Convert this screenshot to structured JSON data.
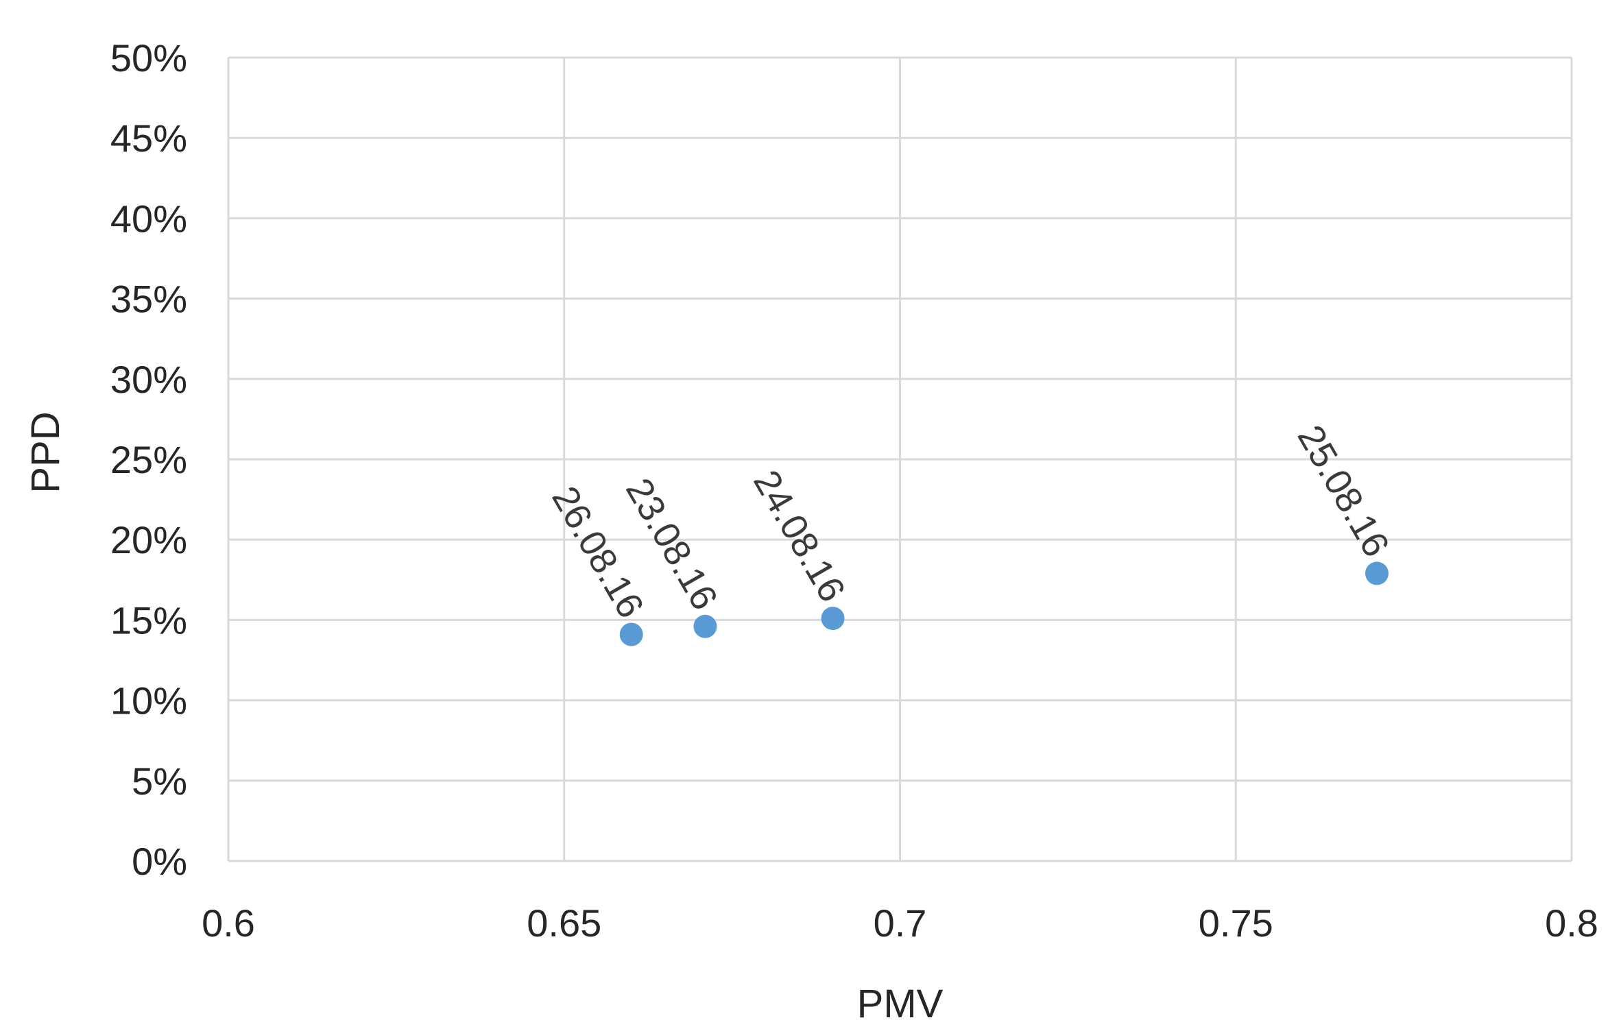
{
  "chart_data": {
    "type": "scatter",
    "title": "",
    "xlabel": "PMV",
    "ylabel": "PPD",
    "xlim": [
      0.6,
      0.8
    ],
    "ylim": [
      0,
      0.5
    ],
    "x_ticks": [
      0.6,
      0.65,
      0.7,
      0.75,
      0.8
    ],
    "x_tick_labels": [
      "0.6",
      "0.65",
      "0.7",
      "0.75",
      "0.8"
    ],
    "y_ticks": [
      0,
      0.05,
      0.1,
      0.15,
      0.2,
      0.25,
      0.3,
      0.35,
      0.4,
      0.45,
      0.5
    ],
    "y_tick_labels": [
      "0%",
      "5%",
      "10%",
      "15%",
      "20%",
      "25%",
      "30%",
      "35%",
      "40%",
      "45%",
      "50%"
    ],
    "grid": true,
    "legend": "none",
    "marker_color": "#5b9bd5",
    "series": [
      {
        "points": [
          {
            "x": 0.66,
            "y": 0.141,
            "label": "26.08.16"
          },
          {
            "x": 0.671,
            "y": 0.146,
            "label": "23.08.16"
          },
          {
            "x": 0.69,
            "y": 0.151,
            "label": "24.08.16"
          },
          {
            "x": 0.771,
            "y": 0.179,
            "label": "25.08.16"
          }
        ]
      }
    ]
  }
}
